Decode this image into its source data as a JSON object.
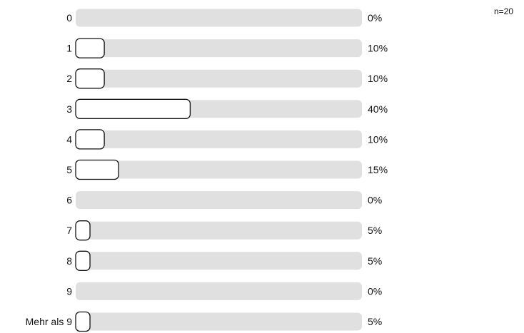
{
  "sample_size_label": "n=20",
  "chart_data": {
    "type": "bar",
    "orientation": "horizontal",
    "categories": [
      "0",
      "1",
      "2",
      "3",
      "4",
      "5",
      "6",
      "7",
      "8",
      "9",
      "Mehr als 9"
    ],
    "values": [
      0,
      10,
      10,
      40,
      10,
      15,
      0,
      5,
      5,
      0,
      5
    ],
    "value_labels": [
      "0%",
      "10%",
      "10%",
      "40%",
      "10%",
      "15%",
      "0%",
      "5%",
      "5%",
      "0%",
      "5%"
    ],
    "unit": "%",
    "xlim": [
      0,
      100
    ],
    "grid": false,
    "legend": "none",
    "colors": {
      "track": "#e0e0e0",
      "bar_fill": "#ffffff",
      "bar_stroke": "#111111",
      "text": "#111111"
    }
  }
}
